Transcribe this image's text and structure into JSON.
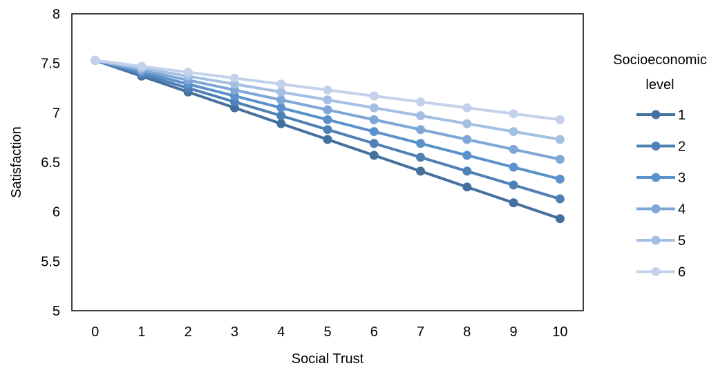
{
  "chart_data": {
    "type": "line",
    "xlabel": "Social Trust",
    "ylabel": "Satisfaction",
    "x": [
      0,
      1,
      2,
      3,
      4,
      5,
      6,
      7,
      8,
      9,
      10
    ],
    "ylim": [
      5,
      8
    ],
    "yticks": [
      5,
      5.5,
      6,
      6.5,
      7,
      7.5,
      8
    ],
    "ytick_labels": [
      "5",
      "5.5",
      "6",
      "6.5",
      "7",
      "7.5",
      "8"
    ],
    "xtick_labels": [
      "0",
      "1",
      "2",
      "3",
      "4",
      "5",
      "6",
      "7",
      "8",
      "9",
      "10"
    ],
    "grid": false,
    "legend": {
      "title": [
        "Socioeconomic",
        "level"
      ],
      "placement": "right"
    },
    "series": [
      {
        "name": "1",
        "color": "#44709d",
        "values": [
          7.53,
          7.37,
          7.21,
          7.05,
          6.89,
          6.73,
          6.57,
          6.41,
          6.25,
          6.09,
          5.93
        ]
      },
      {
        "name": "2",
        "color": "#4f80b6",
        "values": [
          7.53,
          7.39,
          7.25,
          7.11,
          6.97,
          6.83,
          6.69,
          6.55,
          6.41,
          6.27,
          6.13
        ]
      },
      {
        "name": "3",
        "color": "#5b91cb",
        "values": [
          7.53,
          7.41,
          7.29,
          7.17,
          7.05,
          6.93,
          6.81,
          6.69,
          6.57,
          6.45,
          6.33
        ]
      },
      {
        "name": "4",
        "color": "#7ea7d8",
        "values": [
          7.53,
          7.43,
          7.33,
          7.23,
          7.13,
          7.03,
          6.93,
          6.83,
          6.73,
          6.63,
          6.53
        ]
      },
      {
        "name": "5",
        "color": "#a3bfe2",
        "values": [
          7.53,
          7.45,
          7.37,
          7.29,
          7.21,
          7.13,
          7.05,
          6.97,
          6.89,
          6.81,
          6.73
        ]
      },
      {
        "name": "6",
        "color": "#c3d2ea",
        "values": [
          7.53,
          7.47,
          7.41,
          7.35,
          7.29,
          7.23,
          7.17,
          7.11,
          7.05,
          6.99,
          6.93
        ]
      }
    ]
  }
}
